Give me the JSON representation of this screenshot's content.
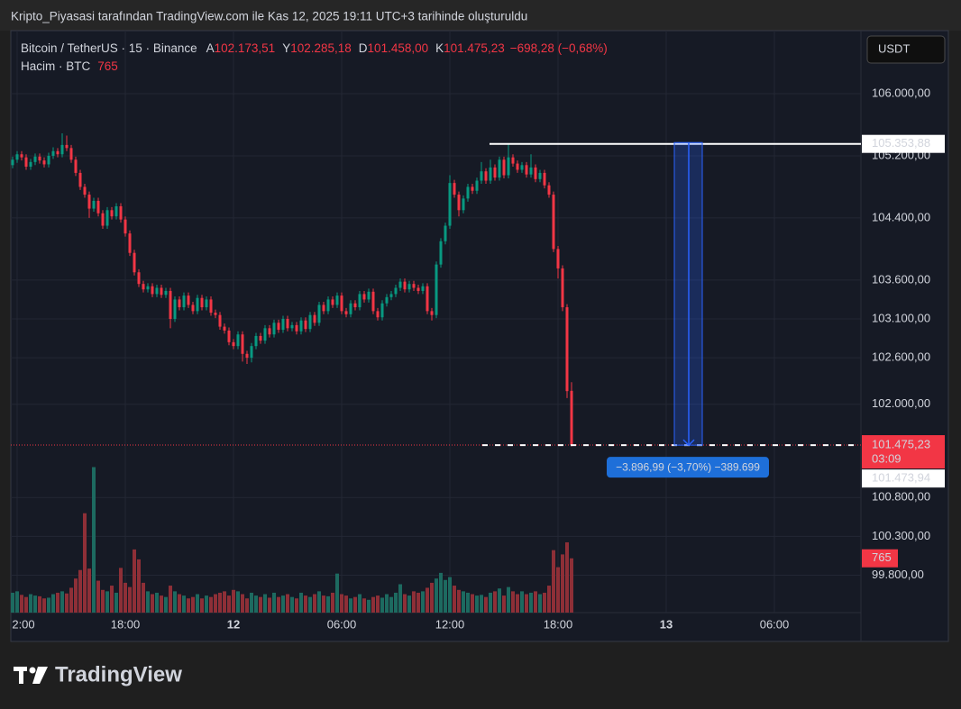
{
  "header": {
    "caption": "Kripto_Piyasasi tarafından TradingView.com ile Kas 12, 2025 19:11 UTC+3 tarihinde oluşturuldu",
    "currency_button": "USDT"
  },
  "chart_data": {
    "type": "candlestick",
    "symbol": "Bitcoin / TetherUS · 15 · Binance",
    "ohlc_legend": [
      {
        "key": "A",
        "value": "102.173,51"
      },
      {
        "key": "Y",
        "value": "102.285,18"
      },
      {
        "key": "D",
        "value": "101.458,00"
      },
      {
        "key": "K",
        "value": "101.475,23"
      }
    ],
    "change": "−698,28 (−0,68%)",
    "categories": [
      null,
      "2:00",
      null,
      null,
      null,
      null,
      null,
      null,
      null,
      null,
      null,
      null,
      null,
      null,
      null,
      null,
      null,
      null,
      null,
      null,
      null,
      null,
      null,
      null,
      null,
      "18:00",
      null,
      null,
      null,
      null,
      null,
      null,
      null,
      null,
      null,
      null,
      null,
      null,
      null,
      null,
      null,
      null,
      null,
      null,
      null,
      null,
      null,
      null,
      null,
      "12",
      null,
      null,
      null,
      null,
      null,
      null,
      null,
      null,
      null,
      null,
      null,
      null,
      null,
      null,
      null,
      null,
      null,
      null,
      null,
      null,
      null,
      null,
      null,
      "06:00",
      null,
      null,
      null,
      null,
      null,
      null,
      null,
      null,
      null,
      null,
      null,
      null,
      null,
      null,
      null,
      null,
      null,
      null,
      null,
      null,
      null,
      null,
      null,
      "12:00",
      null,
      null,
      null,
      null,
      null,
      null,
      null,
      null,
      null,
      null,
      null,
      null,
      null,
      null,
      null,
      null,
      null,
      null,
      null,
      null,
      null,
      null,
      null,
      "18:00",
      null,
      null,
      null,
      null,
      null,
      null,
      null,
      null,
      null,
      null,
      null,
      null,
      null,
      null,
      null,
      null,
      null,
      null,
      null,
      null,
      null,
      null,
      null,
      "13",
      null,
      null,
      null,
      null,
      null,
      null,
      null,
      null,
      null,
      null,
      null,
      null,
      null,
      null,
      null,
      null,
      null,
      null,
      null,
      null,
      null,
      null,
      null,
      "06:00"
    ],
    "open": [
      105080,
      105150,
      105220,
      105180,
      105060,
      105120,
      105190,
      105140,
      105090,
      105200,
      105260,
      105220,
      105340,
      105300,
      105150,
      104980,
      104800,
      104700,
      104520,
      104620,
      104460,
      104300,
      104500,
      104420,
      104550,
      104380,
      104200,
      103950,
      103700,
      103550,
      103480,
      103520,
      103420,
      103500,
      103410,
      103460,
      103100,
      103350,
      103250,
      103400,
      103280,
      103200,
      103370,
      103250,
      103350,
      103180,
      103150,
      103000,
      102950,
      102800,
      102750,
      102900,
      102650,
      102600,
      102750,
      102880,
      102820,
      102980,
      102900,
      103050,
      102960,
      103100,
      102980,
      103020,
      102940,
      103080,
      102970,
      103150,
      103050,
      103280,
      103200,
      103350,
      103280,
      103400,
      103200,
      103160,
      103300,
      103250,
      103420,
      103350,
      103450,
      103200,
      103120,
      103300,
      103380,
      103420,
      103500,
      103580,
      103480,
      103550,
      103500,
      103460,
      103520,
      103200,
      103150,
      103800,
      104100,
      104300,
      104850,
      104700,
      104500,
      104650,
      104800,
      104750,
      104880,
      105000,
      104880,
      105050,
      104920,
      105150,
      104950,
      105180,
      105100,
      105020,
      105080,
      104960,
      105050,
      104900,
      104980,
      104820,
      104700,
      104000,
      103750,
      103250,
      102173.51,
      null,
      null,
      null,
      null,
      null,
      null,
      null,
      null,
      null,
      null,
      null,
      null,
      null,
      null,
      null,
      null,
      null,
      null,
      null,
      null,
      null,
      null,
      null,
      null,
      null,
      null,
      null,
      null,
      null,
      null,
      null,
      null,
      null,
      null,
      null,
      null,
      null,
      null,
      null,
      null,
      null,
      null,
      null,
      null,
      null
    ],
    "high": [
      105190,
      105260,
      105260,
      105220,
      105160,
      105230,
      105230,
      105180,
      105240,
      105310,
      105300,
      105490,
      105460,
      105340,
      105190,
      105020,
      104840,
      104740,
      104660,
      104660,
      104500,
      104540,
      104540,
      104590,
      104590,
      104420,
      104240,
      103990,
      103740,
      103590,
      103560,
      103560,
      103540,
      103540,
      103500,
      103500,
      103390,
      103390,
      103440,
      103440,
      103320,
      103410,
      103410,
      103390,
      103390,
      103220,
      103190,
      103040,
      102990,
      102840,
      102940,
      102940,
      102690,
      102790,
      102920,
      102920,
      103020,
      103020,
      103090,
      103090,
      103140,
      103140,
      103060,
      103060,
      103120,
      103120,
      103190,
      103190,
      103320,
      103320,
      103390,
      103390,
      103440,
      103440,
      103240,
      103340,
      103340,
      103460,
      103460,
      103490,
      103490,
      103240,
      103340,
      103420,
      103460,
      103540,
      103620,
      103620,
      103590,
      103590,
      103540,
      103560,
      103560,
      103240,
      103840,
      104140,
      104340,
      104950,
      104890,
      104740,
      104690,
      104840,
      104840,
      104920,
      105120,
      105040,
      105150,
      105090,
      105190,
      105190,
      105353.88,
      105220,
      105140,
      105120,
      105120,
      105220,
      105090,
      105020,
      105020,
      104860,
      104740,
      104040,
      103790,
      103290,
      102285.18,
      null,
      null,
      null,
      null,
      null,
      null,
      null,
      null,
      null,
      null,
      null,
      null,
      null,
      null,
      null,
      null,
      null,
      null,
      null,
      null,
      null,
      null,
      null,
      null,
      null,
      null,
      null,
      null,
      null,
      null,
      null,
      null,
      null,
      null,
      null,
      null,
      null,
      null,
      null,
      null,
      null,
      null,
      null,
      null,
      null
    ],
    "low": [
      105040,
      105110,
      105140,
      105020,
      105020,
      105080,
      105100,
      105050,
      105050,
      105160,
      105180,
      105180,
      105260,
      105110,
      104940,
      104760,
      104660,
      104400,
      104480,
      104420,
      104260,
      104260,
      104380,
      104380,
      104340,
      104160,
      103910,
      103660,
      103510,
      103440,
      103440,
      103380,
      103380,
      103370,
      103370,
      102980,
      103060,
      103210,
      103210,
      103240,
      103160,
      103160,
      103210,
      103210,
      103140,
      103110,
      102960,
      102910,
      102760,
      102710,
      102710,
      102550,
      102520,
      102540,
      102710,
      102780,
      102780,
      102860,
      102860,
      102920,
      102920,
      102940,
      102940,
      102900,
      102900,
      102930,
      102930,
      103010,
      103010,
      103160,
      103160,
      103240,
      103240,
      103160,
      103120,
      103120,
      103210,
      103210,
      103310,
      103310,
      103160,
      103080,
      103080,
      103260,
      103340,
      103380,
      103460,
      103440,
      103440,
      103460,
      103420,
      103420,
      103160,
      103080,
      103110,
      103760,
      104060,
      104260,
      104660,
      104420,
      104460,
      104610,
      104710,
      104710,
      104840,
      104840,
      104840,
      104880,
      104880,
      104910,
      104910,
      105060,
      104980,
      104980,
      104920,
      104920,
      104860,
      104860,
      104780,
      104660,
      103960,
      103620,
      103200,
      102080,
      101458,
      null,
      null,
      null,
      null,
      null,
      null,
      null,
      null,
      null,
      null,
      null,
      null,
      null,
      null,
      null,
      null,
      null,
      null,
      null,
      null,
      null,
      null,
      null,
      null,
      null,
      null,
      null,
      null,
      null,
      null,
      null,
      null,
      null,
      null,
      null,
      null,
      null,
      null,
      null,
      null,
      null,
      null,
      null,
      null,
      null
    ],
    "close": [
      105150,
      105220,
      105180,
      105060,
      105120,
      105190,
      105140,
      105090,
      105200,
      105260,
      105220,
      105340,
      105300,
      105150,
      104980,
      104800,
      104700,
      104520,
      104620,
      104460,
      104300,
      104500,
      104420,
      104550,
      104380,
      104200,
      103950,
      103700,
      103550,
      103480,
      103520,
      103420,
      103500,
      103410,
      103460,
      103100,
      103350,
      103250,
      103400,
      103280,
      103200,
      103370,
      103250,
      103350,
      103180,
      103150,
      103000,
      102950,
      102800,
      102750,
      102900,
      102650,
      102600,
      102750,
      102880,
      102820,
      102980,
      102900,
      103050,
      102960,
      103100,
      102980,
      103020,
      102940,
      103080,
      102970,
      103150,
      103050,
      103280,
      103200,
      103350,
      103280,
      103400,
      103200,
      103160,
      103300,
      103250,
      103420,
      103350,
      103450,
      103200,
      103120,
      103300,
      103380,
      103420,
      103500,
      103580,
      103480,
      103550,
      103500,
      103460,
      103520,
      103200,
      103150,
      103800,
      104100,
      104300,
      104850,
      104700,
      104500,
      104650,
      104800,
      104750,
      104880,
      105000,
      104880,
      105050,
      104920,
      105150,
      104950,
      105180,
      105100,
      105020,
      105080,
      104960,
      105050,
      104900,
      104980,
      104820,
      104700,
      104000,
      103750,
      103250,
      102170,
      101475.23,
      null,
      null,
      null,
      null,
      null,
      null,
      null,
      null,
      null,
      null,
      null,
      null,
      null,
      null,
      null,
      null,
      null,
      null,
      null,
      null,
      null,
      null,
      null,
      null,
      null,
      null,
      null,
      null,
      null,
      null,
      null,
      null,
      null,
      null,
      null,
      null,
      null,
      null,
      null,
      null,
      null,
      null,
      null,
      null,
      null
    ],
    "up_color": "#089981",
    "down_color": "#f23645",
    "volume": {
      "name": "Hacim · BTC",
      "axis": "y2",
      "up_color": "#1d6a60",
      "down_color": "#8e2f37",
      "values": [
        280,
        300,
        250,
        220,
        260,
        240,
        230,
        200,
        210,
        260,
        280,
        300,
        270,
        350,
        480,
        600,
        1400,
        620,
        2050,
        450,
        320,
        300,
        380,
        280,
        630,
        420,
        360,
        890,
        750,
        420,
        300,
        260,
        280,
        240,
        220,
        380,
        300,
        260,
        240,
        200,
        220,
        260,
        200,
        240,
        220,
        260,
        280,
        300,
        240,
        320,
        300,
        260,
        200,
        280,
        240,
        220,
        260,
        210,
        280,
        220,
        240,
        260,
        220,
        200,
        280,
        240,
        220,
        260,
        300,
        240,
        230,
        280,
        550,
        260,
        240,
        200,
        220,
        260,
        200,
        180,
        220,
        240,
        210,
        260,
        220,
        280,
        400,
        260,
        240,
        300,
        280,
        300,
        350,
        420,
        480,
        560,
        460,
        500,
        380,
        320,
        300,
        280,
        260,
        240,
        250,
        220,
        280,
        300,
        340,
        240,
        360,
        300,
        260,
        300,
        260,
        280,
        300,
        260,
        280,
        380,
        880,
        640,
        820,
        990,
        765,
        null,
        null,
        null,
        null,
        null,
        null,
        null,
        null,
        null,
        null,
        null,
        null,
        null,
        null,
        null,
        null,
        null,
        null,
        null,
        null,
        null,
        null,
        null,
        null,
        null,
        null,
        null,
        null,
        null,
        null,
        null,
        null,
        null,
        null,
        null,
        null,
        null,
        null,
        null,
        null,
        null,
        null,
        null,
        null,
        null
      ]
    },
    "ylim": [
      99318,
      106812
    ],
    "yticks": [
      {
        "value": 106000,
        "label": "106.000,00"
      },
      {
        "value": 105200,
        "label": "105.200,00"
      },
      {
        "value": 104400,
        "label": "104.400,00"
      },
      {
        "value": 103600,
        "label": "103.600,00"
      },
      {
        "value": 103100,
        "label": "103.100,00"
      },
      {
        "value": 102600,
        "label": "102.600,00"
      },
      {
        "value": 102000,
        "label": "102.000,00"
      },
      {
        "value": 100800,
        "label": "100.800,00"
      },
      {
        "value": 100300,
        "label": "100.300,00"
      },
      {
        "value": 99800,
        "label": "99.800,00"
      }
    ],
    "y2lim": [
      0,
      8200
    ],
    "grid": true,
    "high_line": {
      "value": 105353.88,
      "label": "105.353,88"
    },
    "last_price": {
      "value": 101475.23,
      "label": "101.475,23",
      "countdown": "03:09"
    },
    "bid": {
      "value": 101473.94,
      "label": "101.473,94"
    },
    "measure": {
      "from": 105370.89,
      "to": 101473.9,
      "label": "−3.896,99 (−3,70%) −389.699"
    }
  },
  "footer": {
    "logo": "TradingView"
  }
}
